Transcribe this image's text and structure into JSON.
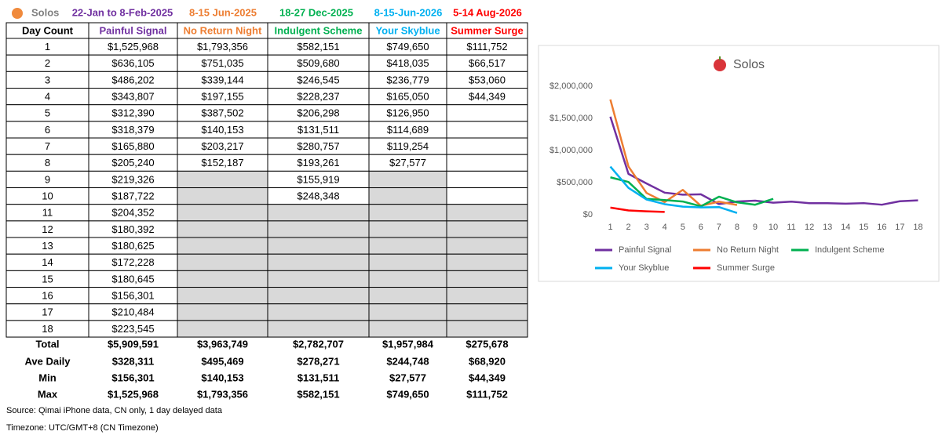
{
  "header": {
    "title": "Solos",
    "periods": [
      "22-Jan to 8-Feb-2025",
      "8-15 Jun-2025",
      "18-27 Dec-2025",
      "8-15-Jun-2026",
      "5-14 Aug-2026"
    ]
  },
  "table": {
    "columns": [
      "Day Count",
      "Painful Signal",
      "No Return Night",
      "Indulgent Scheme",
      "Your Skyblue",
      "Summer Surge"
    ],
    "rows": [
      [
        "1",
        "$1,525,968",
        "$1,793,356",
        "$582,151",
        "$749,650",
        "$111,752"
      ],
      [
        "2",
        "$636,105",
        "$751,035",
        "$509,680",
        "$418,035",
        "$66,517"
      ],
      [
        "3",
        "$486,202",
        "$339,144",
        "$246,545",
        "$236,779",
        "$53,060"
      ],
      [
        "4",
        "$343,807",
        "$197,155",
        "$228,237",
        "$165,050",
        "$44,349"
      ],
      [
        "5",
        "$312,390",
        "$387,502",
        "$206,298",
        "$126,950",
        null
      ],
      [
        "6",
        "$318,379",
        "$140,153",
        "$131,511",
        "$114,689",
        null
      ],
      [
        "7",
        "$165,880",
        "$203,217",
        "$280,757",
        "$119,254",
        null
      ],
      [
        "8",
        "$205,240",
        "$152,187",
        "$193,261",
        "$27,577",
        null
      ],
      [
        "9",
        "$219,326",
        null,
        "$155,919",
        null,
        null
      ],
      [
        "10",
        "$187,722",
        null,
        "$248,348",
        null,
        null
      ],
      [
        "11",
        "$204,352",
        null,
        null,
        null,
        null
      ],
      [
        "12",
        "$180,392",
        null,
        null,
        null,
        null
      ],
      [
        "13",
        "$180,625",
        null,
        null,
        null,
        null
      ],
      [
        "14",
        "$172,228",
        null,
        null,
        null,
        null
      ],
      [
        "15",
        "$180,645",
        null,
        null,
        null,
        null
      ],
      [
        "16",
        "$156,301",
        null,
        null,
        null,
        null
      ],
      [
        "17",
        "$210,484",
        null,
        null,
        null,
        null
      ],
      [
        "18",
        "$223,545",
        null,
        null,
        null,
        null
      ]
    ],
    "summary": [
      [
        "Total",
        "$5,909,591",
        "$3,963,749",
        "$2,782,707",
        "$1,957,984",
        "$275,678"
      ],
      [
        "Ave Daily",
        "$328,311",
        "$495,469",
        "$278,271",
        "$244,748",
        "$68,920"
      ],
      [
        "Min",
        "$156,301",
        "$140,153",
        "$131,511",
        "$27,577",
        "$44,349"
      ],
      [
        "Max",
        "$1,525,968",
        "$1,793,356",
        "$582,151",
        "$749,650",
        "$111,752"
      ]
    ]
  },
  "footnotes": [
    "Source: Qimai iPhone data, CN only, 1 day delayed data",
    "Timezone: UTC/GMT+8 (CN Timezone)"
  ],
  "chart_data": {
    "type": "line",
    "title": "Solos",
    "categories": [
      1,
      2,
      3,
      4,
      5,
      6,
      7,
      8,
      9,
      10,
      11,
      12,
      13,
      14,
      15,
      16,
      17,
      18
    ],
    "series": [
      {
        "name": "Painful Signal",
        "color": "#7030a0",
        "values": [
          1525968,
          636105,
          486202,
          343807,
          312390,
          318379,
          165880,
          205240,
          219326,
          187722,
          204352,
          180392,
          180625,
          172228,
          180645,
          156301,
          210484,
          223545
        ]
      },
      {
        "name": "No Return Night",
        "color": "#ed7d31",
        "values": [
          1793356,
          751035,
          339144,
          197155,
          387502,
          140153,
          203217,
          152187,
          null,
          null,
          null,
          null,
          null,
          null,
          null,
          null,
          null,
          null
        ]
      },
      {
        "name": "Indulgent Scheme",
        "color": "#00b050",
        "values": [
          582151,
          509680,
          246545,
          228237,
          206298,
          131511,
          280757,
          193261,
          155919,
          248348,
          null,
          null,
          null,
          null,
          null,
          null,
          null,
          null
        ]
      },
      {
        "name": "Your Skyblue",
        "color": "#00b0f0",
        "values": [
          749650,
          418035,
          236779,
          165050,
          126950,
          114689,
          119254,
          27577,
          null,
          null,
          null,
          null,
          null,
          null,
          null,
          null,
          null,
          null
        ]
      },
      {
        "name": "Summer Surge",
        "color": "#ff0000",
        "values": [
          111752,
          66517,
          53060,
          44349,
          null,
          null,
          null,
          null,
          null,
          null,
          null,
          null,
          null,
          null,
          null,
          null,
          null,
          null
        ]
      }
    ],
    "ylim": [
      0,
      2000000
    ],
    "yticks": [
      {
        "value": 0,
        "label": "$0"
      },
      {
        "value": 500000,
        "label": "$500,000"
      },
      {
        "value": 1000000,
        "label": "$1,000,000"
      },
      {
        "value": 1500000,
        "label": "$1,500,000"
      },
      {
        "value": 2000000,
        "label": "$2,000,000"
      }
    ],
    "grid": false,
    "legend": "bottom"
  }
}
